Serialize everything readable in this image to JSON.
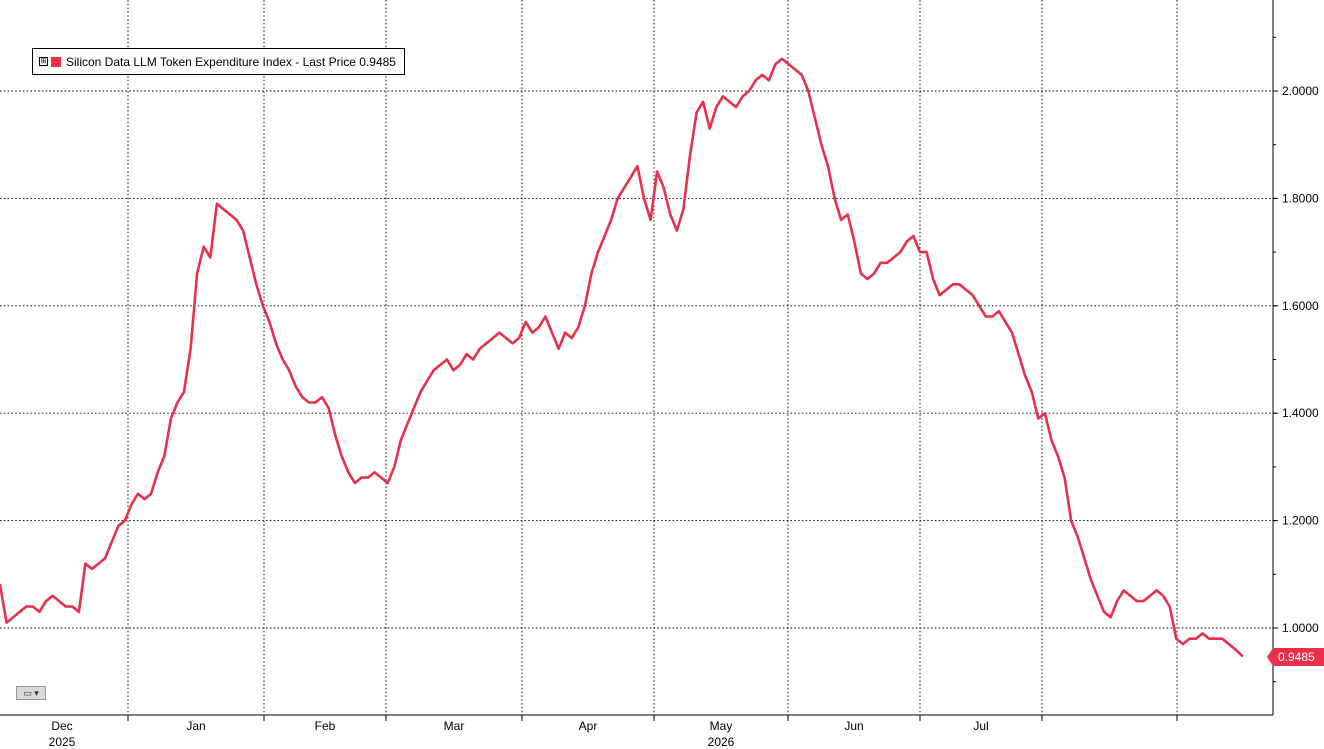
{
  "colors": {
    "series": "#e8304a",
    "grid": "#000000",
    "background": "#ffffff"
  },
  "legend": {
    "expander_glyph": "⊞",
    "text": "Silicon Data LLM Token Expenditure Index - Last Price 0.9485"
  },
  "last_price_tag": "0.9485",
  "toolbar": {
    "chart_type_icon": "line-chart-icon",
    "chart_type_glyph": "▭ ▾"
  },
  "chart_data": {
    "type": "line",
    "title": "",
    "xlabel": "",
    "ylabel": "",
    "legend_position": "top-left",
    "grid": true,
    "y_axis_side": "right",
    "ylim": [
      0.9,
      2.17
    ],
    "y_ticks": [
      1.0,
      1.2,
      1.4,
      1.6,
      1.8,
      2.0
    ],
    "y_tick_labels": [
      "1.0000",
      "1.2000",
      "1.4000",
      "1.6000",
      "1.8000",
      "2.0000"
    ],
    "x_month_labels": [
      {
        "label": "Dec",
        "year": "2025"
      },
      {
        "label": "Jan",
        "year": ""
      },
      {
        "label": "Feb",
        "year": ""
      },
      {
        "label": "Mar",
        "year": ""
      },
      {
        "label": "Apr",
        "year": ""
      },
      {
        "label": "May",
        "year": "2026"
      },
      {
        "label": "Jun",
        "year": ""
      },
      {
        "label": "Jul",
        "year": ""
      }
    ],
    "series": [
      {
        "name": "Silicon Data LLM Token Expenditure Index",
        "last_price": 0.9485,
        "values": [
          1.08,
          1.01,
          1.02,
          1.03,
          1.04,
          1.04,
          1.03,
          1.05,
          1.06,
          1.05,
          1.04,
          1.04,
          1.03,
          1.12,
          1.11,
          1.12,
          1.13,
          1.16,
          1.19,
          1.2,
          1.23,
          1.25,
          1.24,
          1.25,
          1.29,
          1.32,
          1.39,
          1.42,
          1.44,
          1.52,
          1.66,
          1.71,
          1.69,
          1.79,
          1.78,
          1.77,
          1.76,
          1.74,
          1.69,
          1.64,
          1.6,
          1.57,
          1.53,
          1.5,
          1.48,
          1.45,
          1.43,
          1.42,
          1.42,
          1.43,
          1.41,
          1.36,
          1.32,
          1.29,
          1.27,
          1.28,
          1.28,
          1.29,
          1.28,
          1.27,
          1.3,
          1.35,
          1.38,
          1.41,
          1.44,
          1.46,
          1.48,
          1.49,
          1.5,
          1.48,
          1.49,
          1.51,
          1.5,
          1.52,
          1.53,
          1.54,
          1.55,
          1.54,
          1.53,
          1.54,
          1.57,
          1.55,
          1.56,
          1.58,
          1.55,
          1.52,
          1.55,
          1.54,
          1.56,
          1.6,
          1.66,
          1.7,
          1.73,
          1.76,
          1.8,
          1.82,
          1.84,
          1.86,
          1.8,
          1.76,
          1.85,
          1.82,
          1.77,
          1.74,
          1.78,
          1.88,
          1.96,
          1.98,
          1.93,
          1.97,
          1.99,
          1.98,
          1.97,
          1.99,
          2.0,
          2.02,
          2.03,
          2.02,
          2.05,
          2.06,
          2.05,
          2.04,
          2.03,
          2.0,
          1.95,
          1.9,
          1.86,
          1.8,
          1.76,
          1.77,
          1.72,
          1.66,
          1.65,
          1.66,
          1.68,
          1.68,
          1.69,
          1.7,
          1.72,
          1.73,
          1.7,
          1.7,
          1.65,
          1.62,
          1.63,
          1.64,
          1.64,
          1.63,
          1.62,
          1.6,
          1.58,
          1.58,
          1.59,
          1.57,
          1.55,
          1.51,
          1.47,
          1.44,
          1.39,
          1.4,
          1.35,
          1.32,
          1.28,
          1.2,
          1.17,
          1.13,
          1.09,
          1.06,
          1.03,
          1.02,
          1.05,
          1.07,
          1.06,
          1.05,
          1.05,
          1.06,
          1.07,
          1.06,
          1.04,
          0.98,
          0.97,
          0.98,
          0.98,
          0.99,
          0.98,
          0.98,
          0.98,
          0.97,
          0.96,
          0.9485
        ]
      }
    ]
  }
}
